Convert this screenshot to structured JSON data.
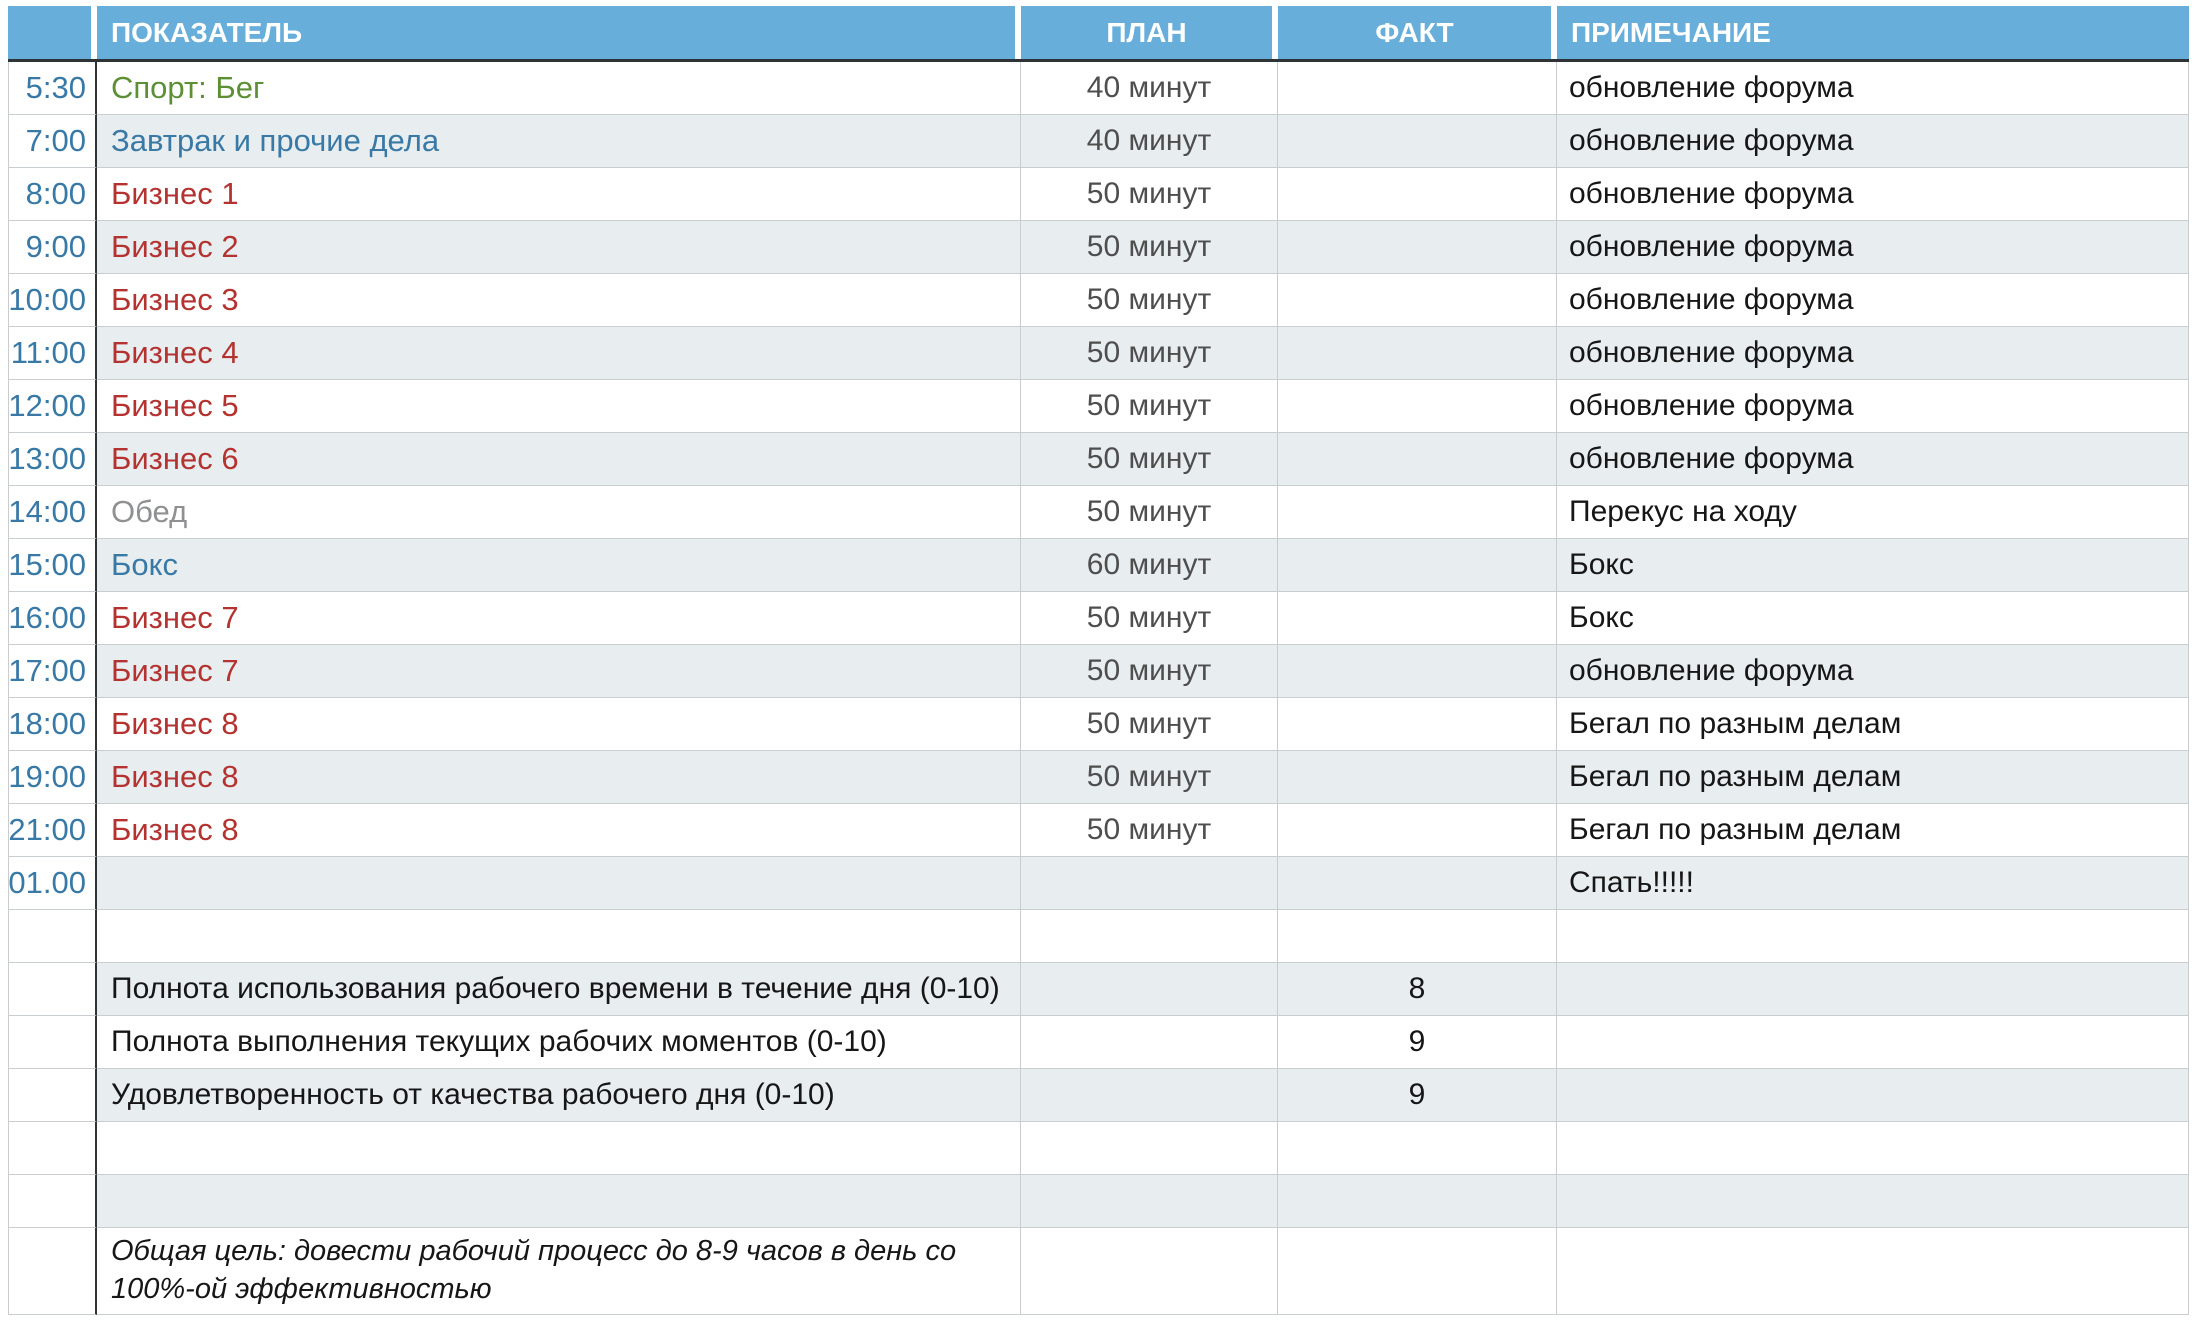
{
  "header": {
    "indicator": "ПОКАЗАТЕЛЬ",
    "plan": "ПЛАН",
    "fact": "ФАКТ",
    "note": "ПРИМЕЧАНИЕ"
  },
  "rows": [
    {
      "time": "5:30",
      "indicator": "Спорт: Бег",
      "plan": "40 минут",
      "fact": "",
      "note": "обновление форума"
    },
    {
      "time": "7:00",
      "indicator": "Завтрак и прочие дела",
      "plan": "40 минут",
      "fact": "",
      "note": "обновление форума"
    },
    {
      "time": "8:00",
      "indicator": "Бизнес 1",
      "plan": "50 минут",
      "fact": "",
      "note": "обновление форума"
    },
    {
      "time": "9:00",
      "indicator": "Бизнес 2",
      "plan": "50 минут",
      "fact": "",
      "note": "обновление форума"
    },
    {
      "time": "10:00",
      "indicator": "Бизнес 3",
      "plan": "50 минут",
      "fact": "",
      "note": "обновление форума"
    },
    {
      "time": "11:00",
      "indicator": "Бизнес 4",
      "plan": "50 минут",
      "fact": "",
      "note": "обновление форума"
    },
    {
      "time": "12:00",
      "indicator": "Бизнес 5",
      "plan": "50 минут",
      "fact": "",
      "note": "обновление форума"
    },
    {
      "time": "13:00",
      "indicator": "Бизнес 6",
      "plan": "50 минут",
      "fact": "",
      "note": "обновление форума"
    },
    {
      "time": "14:00",
      "indicator": "Обед",
      "plan": "50 минут",
      "fact": "",
      "note": "Перекус на ходу"
    },
    {
      "time": "15:00",
      "indicator": "Бокс",
      "plan": "60 минут",
      "fact": "",
      "note": "Бокс"
    },
    {
      "time": "16:00",
      "indicator": "Бизнес 7",
      "plan": "50 минут",
      "fact": "",
      "note": "Бокс"
    },
    {
      "time": "17:00",
      "indicator": "Бизнес 7",
      "plan": "50 минут",
      "fact": "",
      "note": "обновление форума"
    },
    {
      "time": "18:00",
      "indicator": "Бизнес 8",
      "plan": "50 минут",
      "fact": "",
      "note": "Бегал по разным делам"
    },
    {
      "time": "19:00",
      "indicator": "Бизнес 8",
      "plan": "50 минут",
      "fact": "",
      "note": "Бегал по разным делам"
    },
    {
      "time": "21:00",
      "indicator": "Бизнес 8",
      "plan": "50 минут",
      "fact": "",
      "note": "Бегал по разным делам"
    },
    {
      "time": "01.00",
      "indicator": "",
      "plan": "",
      "fact": "",
      "note": "Спать!!!!!"
    }
  ],
  "summary": [
    {
      "label": "Полнота использования рабочего времени в течение дня (0-10)",
      "fact": "8"
    },
    {
      "label": "Полнота выполнения текущих рабочих моментов (0-10)",
      "fact": "9"
    },
    {
      "label": "Удовлетворенность от качества рабочего дня (0-10)",
      "fact": "9"
    }
  ],
  "goal": "Общая цель: довести рабочий процесс до 8-9 часов в день со 100%-ой эффективностью",
  "colors": {
    "header_bg": "#68AEDA",
    "dark": "#2E3338",
    "grid": "#C9CDD0",
    "stripe": "#E8EDEF",
    "time_blue": "#3879A6",
    "green": "#5D9035",
    "red": "#B43331",
    "gray": "#8F9092",
    "plan_text": "#4E4E4E",
    "text": "#161616"
  }
}
